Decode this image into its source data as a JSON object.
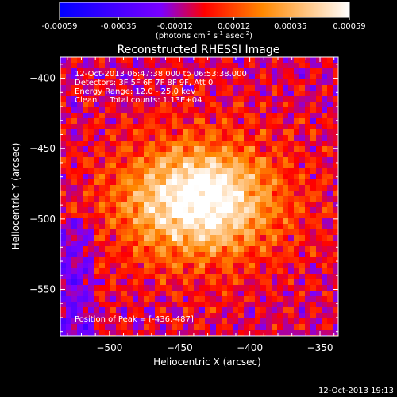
{
  "colorbar": {
    "ticks": [
      "-0.00059",
      "-0.00035",
      "-0.00012",
      "0.00012",
      "0.00035",
      "0.00059"
    ],
    "min": -0.00059,
    "max": 0.00059,
    "unit_prefix": "(photons cm",
    "unit_exp1": "-2",
    "unit_mid": " s",
    "unit_exp2": "-1",
    "unit_mid2": " asec",
    "unit_exp3": "-2",
    "unit_suffix": ")"
  },
  "info": {
    "time_range": "12-Oct-2013 06:47:38.000 to 06:53:38.000",
    "detectors": "Detectors: 3F 5F 6F 7F 8F 9F, Att 0",
    "energy": "Energy Range: 12.0 - 25.0 keV",
    "clean": "Clean     Total counts: 1.13E+04",
    "peak": "Position of Peak = [-436,-487]"
  },
  "footer": {
    "timestamp": "12-Oct-2013 19:13"
  },
  "chart_data": {
    "type": "heatmap",
    "title": "Reconstructed RHESSI Image",
    "xlabel": "Heliocentric X (arcsec)",
    "ylabel": "Heliocentric Y (arcsec)",
    "xlim": [
      -535,
      -337
    ],
    "ylim": [
      -583,
      -385
    ],
    "xticks": [
      -500,
      -450,
      -400,
      -350
    ],
    "xtick_labels": [
      "−500",
      "−450",
      "−400",
      "−350"
    ],
    "yticks": [
      -400,
      -450,
      -500,
      -550
    ],
    "ytick_labels": [
      "−400",
      "−450",
      "−500",
      "−550"
    ],
    "peak": {
      "x": -436,
      "y": -487
    },
    "colormap": [
      "#0000ff",
      "#7a00ff",
      "#ff0000",
      "#ff8800",
      "#ffffff"
    ],
    "source_extent_arcsec": {
      "x": 120,
      "y": 90
    }
  }
}
